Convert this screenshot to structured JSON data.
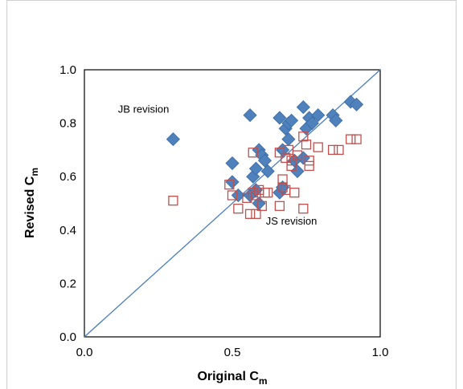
{
  "chart_data": {
    "type": "scatter",
    "title": "",
    "xlabel": {
      "main": "Original C",
      "sub": "m"
    },
    "ylabel": {
      "main": "Revised C",
      "sub": "m"
    },
    "xlim": [
      0,
      1
    ],
    "ylim": [
      0,
      1
    ],
    "xticks": [
      "0.0",
      "0.5",
      "1.0"
    ],
    "yticks": [
      "0.0",
      "0.2",
      "0.4",
      "0.6",
      "0.8",
      "1.0"
    ],
    "grid": false,
    "legend": "none",
    "reference_line": {
      "from": [
        0,
        0
      ],
      "to": [
        1,
        1
      ],
      "color": "#4a7ebb"
    },
    "annotations": [
      {
        "text": "JB revision",
        "x": 0.2,
        "y": 0.84
      },
      {
        "text": "JS revision",
        "x": 0.7,
        "y": 0.42
      }
    ],
    "series": [
      {
        "marker": "diamond",
        "color": "#4f81bd",
        "points": [
          [
            0.3,
            0.74
          ],
          [
            0.5,
            0.65
          ],
          [
            0.5,
            0.58
          ],
          [
            0.52,
            0.53
          ],
          [
            0.56,
            0.83
          ],
          [
            0.56,
            0.53
          ],
          [
            0.57,
            0.6
          ],
          [
            0.58,
            0.63
          ],
          [
            0.58,
            0.55
          ],
          [
            0.59,
            0.5
          ],
          [
            0.59,
            0.7
          ],
          [
            0.6,
            0.68
          ],
          [
            0.61,
            0.66
          ],
          [
            0.62,
            0.62
          ],
          [
            0.66,
            0.82
          ],
          [
            0.66,
            0.54
          ],
          [
            0.67,
            0.56
          ],
          [
            0.67,
            0.7
          ],
          [
            0.68,
            0.78
          ],
          [
            0.69,
            0.8
          ],
          [
            0.69,
            0.74
          ],
          [
            0.7,
            0.81
          ],
          [
            0.71,
            0.66
          ],
          [
            0.72,
            0.62
          ],
          [
            0.74,
            0.86
          ],
          [
            0.74,
            0.67
          ],
          [
            0.75,
            0.78
          ],
          [
            0.76,
            0.82
          ],
          [
            0.77,
            0.8
          ],
          [
            0.79,
            0.83
          ],
          [
            0.84,
            0.83
          ],
          [
            0.85,
            0.81
          ],
          [
            0.9,
            0.88
          ],
          [
            0.92,
            0.87
          ]
        ]
      },
      {
        "marker": "square-open",
        "color": "#c0504d",
        "points": [
          [
            0.3,
            0.51
          ],
          [
            0.49,
            0.57
          ],
          [
            0.5,
            0.53
          ],
          [
            0.52,
            0.48
          ],
          [
            0.55,
            0.52
          ],
          [
            0.56,
            0.46
          ],
          [
            0.57,
            0.54
          ],
          [
            0.57,
            0.69
          ],
          [
            0.58,
            0.53
          ],
          [
            0.58,
            0.46
          ],
          [
            0.59,
            0.55
          ],
          [
            0.6,
            0.49
          ],
          [
            0.61,
            0.54
          ],
          [
            0.62,
            0.54
          ],
          [
            0.66,
            0.49
          ],
          [
            0.66,
            0.69
          ],
          [
            0.67,
            0.56
          ],
          [
            0.67,
            0.59
          ],
          [
            0.68,
            0.55
          ],
          [
            0.68,
            0.67
          ],
          [
            0.69,
            0.7
          ],
          [
            0.7,
            0.64
          ],
          [
            0.7,
            0.66
          ],
          [
            0.71,
            0.54
          ],
          [
            0.72,
            0.68
          ],
          [
            0.74,
            0.48
          ],
          [
            0.74,
            0.75
          ],
          [
            0.75,
            0.72
          ],
          [
            0.76,
            0.64
          ],
          [
            0.76,
            0.66
          ],
          [
            0.79,
            0.71
          ],
          [
            0.84,
            0.7
          ],
          [
            0.86,
            0.7
          ],
          [
            0.9,
            0.74
          ],
          [
            0.92,
            0.74
          ]
        ]
      }
    ]
  }
}
